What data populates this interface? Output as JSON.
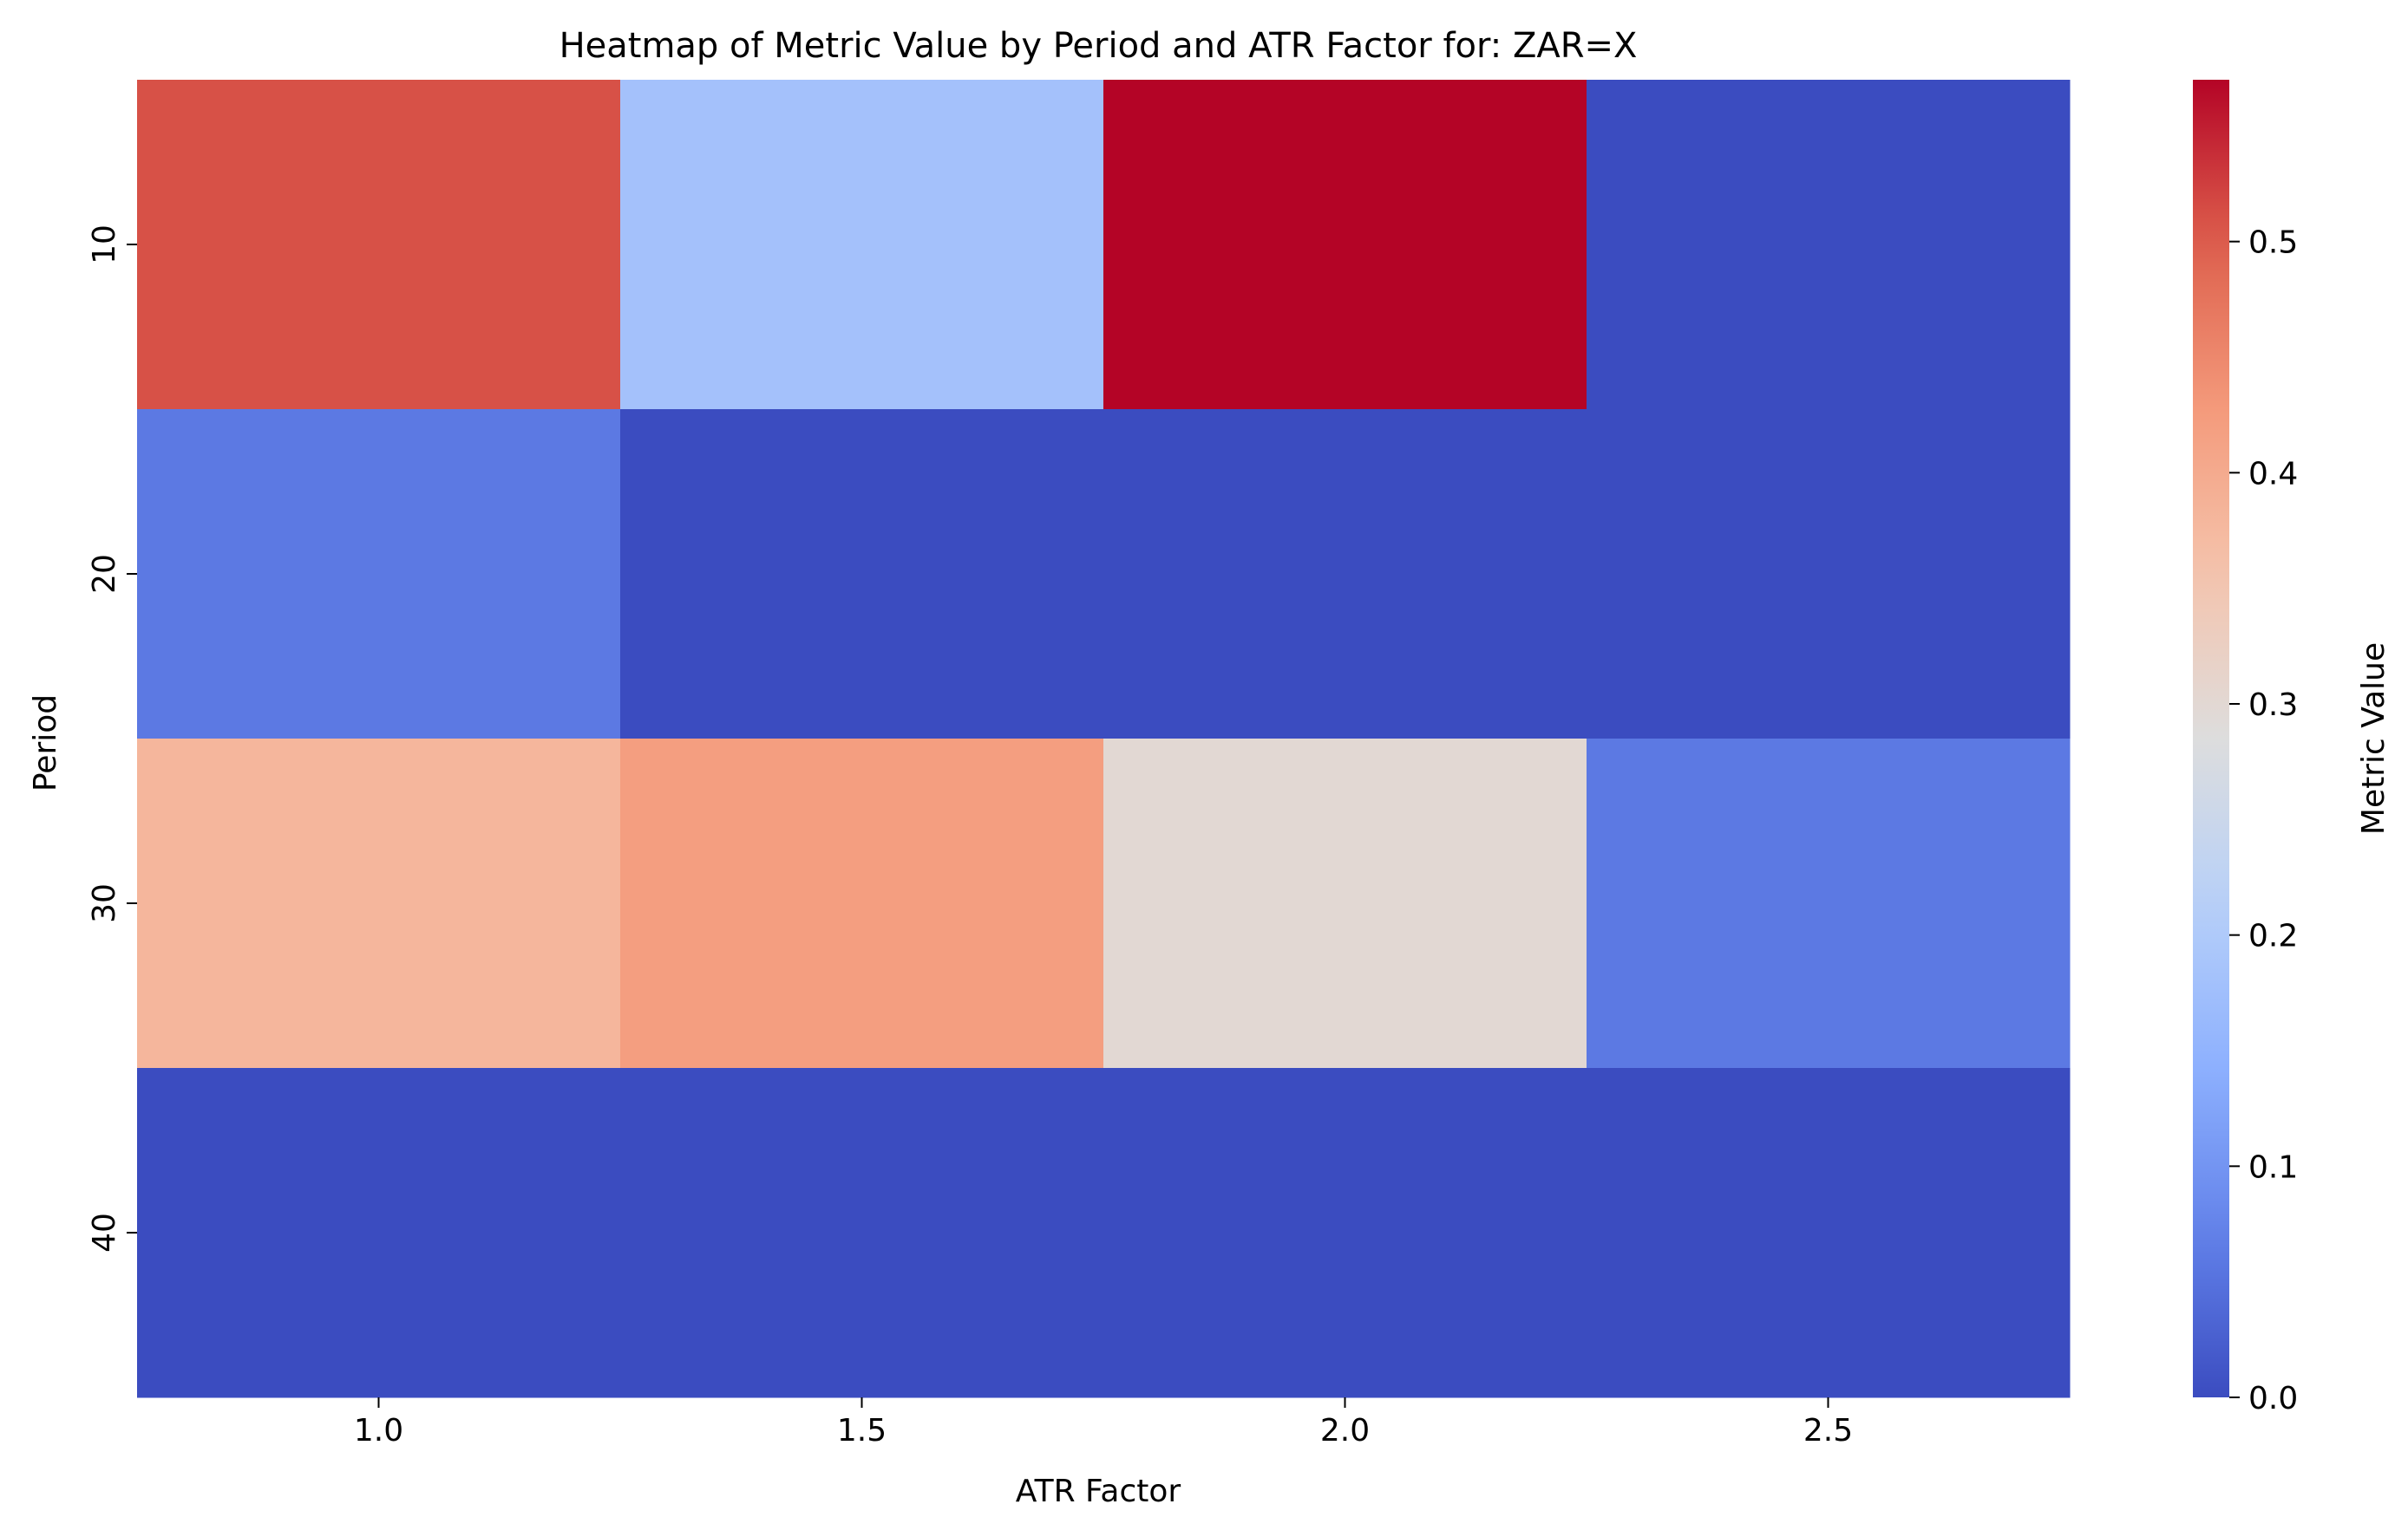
{
  "chart_data": {
    "type": "heatmap",
    "title": "Heatmap of Metric Value by Period and ATR Factor for: ZAR=X",
    "xlabel": "ATR Factor",
    "ylabel": "Period",
    "x_categories": [
      "1.0",
      "1.5",
      "2.0",
      "2.5"
    ],
    "y_categories": [
      "10",
      "20",
      "30",
      "40"
    ],
    "values": [
      [
        0.51,
        0.18,
        0.57,
        0.0
      ],
      [
        0.06,
        0.0,
        0.0,
        0.0
      ],
      [
        0.38,
        0.42,
        0.3,
        0.06
      ],
      [
        0.0,
        0.0,
        0.0,
        0.0
      ]
    ],
    "colormap": "coolwarm",
    "colorbar": {
      "label": "Metric Value",
      "range": [
        0.0,
        0.57
      ],
      "ticks": [
        "0.0",
        "0.1",
        "0.2",
        "0.3",
        "0.4",
        "0.5"
      ]
    },
    "grid": false
  }
}
